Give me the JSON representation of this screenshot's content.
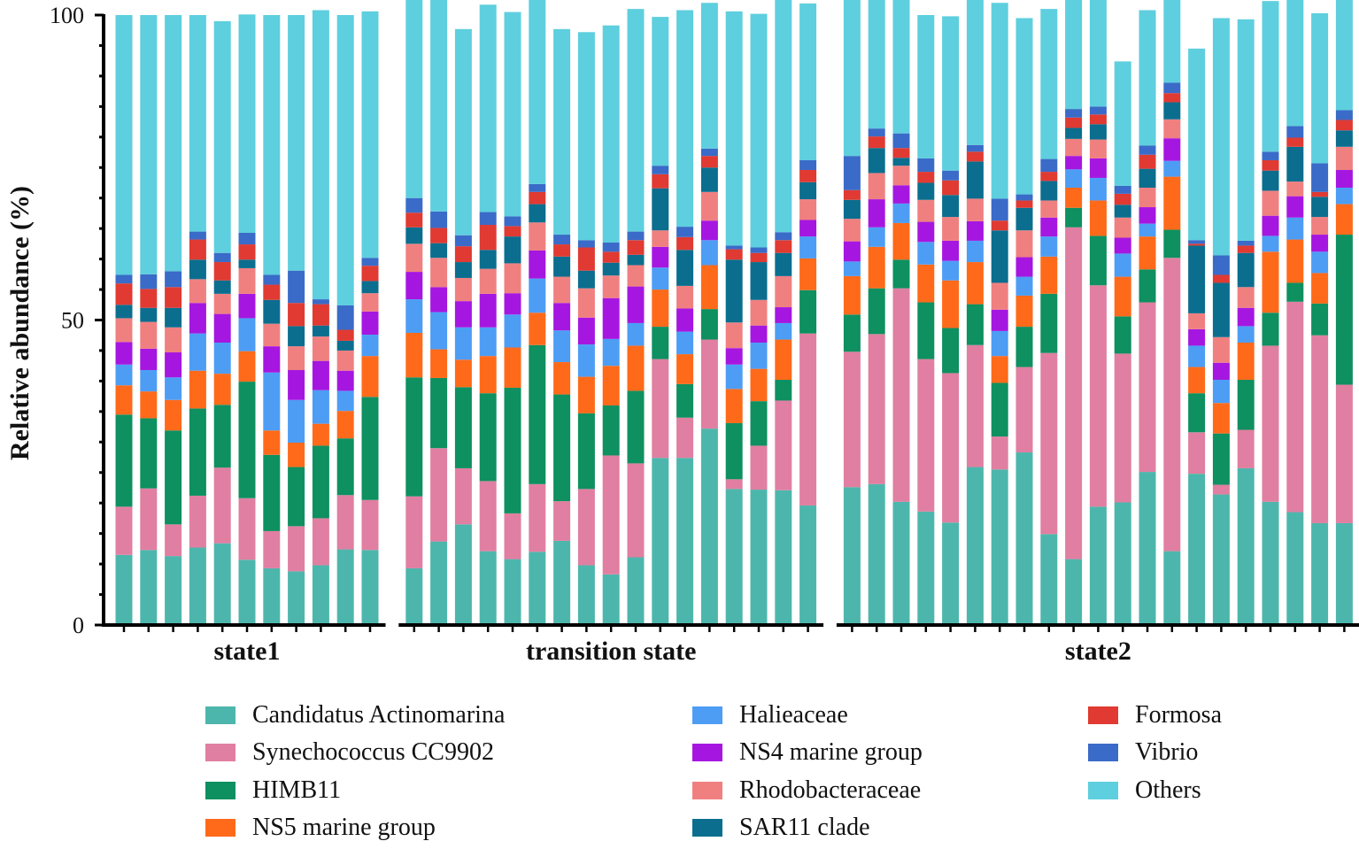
{
  "chart_data": {
    "type": "bar",
    "stacked": true,
    "ylabel": "Relative abundance (%)",
    "ylim": [
      0,
      100
    ],
    "yticks": [
      0,
      50,
      100
    ],
    "groups": [
      {
        "label": "state1",
        "count": 11
      },
      {
        "label": "transition state",
        "count": 17
      },
      {
        "label": "state2",
        "count": 21
      }
    ],
    "series": [
      {
        "name": "Candidatus Actinomarina",
        "color": "#4db6ac",
        "values": [
          11.5,
          12.3,
          11.3,
          12.7,
          13.4,
          10.7,
          9.3,
          8.8,
          9.8,
          12.4,
          12.3,
          9.3,
          13.7,
          16.5,
          12.1,
          10.8,
          12,
          13.8,
          9.8,
          8.3,
          11.1,
          27.4,
          27.4,
          32.2,
          22.3,
          22.2,
          22.1,
          19.6,
          22.6,
          23.1,
          20.2,
          18.6,
          16.8,
          25.9,
          25.5,
          28.3,
          14.9,
          10.8,
          19.4,
          20.1,
          25.1,
          12.1,
          24.8,
          21.4,
          25.7,
          20.2,
          18.5,
          16.7,
          16.7
        ]
      },
      {
        "name": "Synechococcus CC9902",
        "color": "#e07fa1",
        "values": [
          7.9,
          10.1,
          5.2,
          8.5,
          12.4,
          10.1,
          6.1,
          7.4,
          7.7,
          8.9,
          8.2,
          11.8,
          15.3,
          9.2,
          11.5,
          7.5,
          11.1,
          6.5,
          12.5,
          19.5,
          15.4,
          16.2,
          6.6,
          14.6,
          1.6,
          7.2,
          14.7,
          28.2,
          22.2,
          24.6,
          35,
          25,
          24.5,
          20,
          5.4,
          14,
          29.7,
          54.4,
          36.3,
          24.4,
          27.8,
          48.1,
          6.8,
          1.6,
          6.3,
          25.6,
          34.5,
          30.8,
          22.7
        ]
      },
      {
        "name": "HIMB11",
        "color": "#0e9060",
        "values": [
          15.1,
          11.5,
          15.4,
          14.3,
          10.3,
          19.1,
          12.5,
          9.7,
          11.9,
          9.3,
          16.9,
          19.5,
          11.5,
          13.3,
          14.4,
          20.6,
          22.8,
          17.5,
          12.4,
          8.2,
          11.9,
          5.3,
          5.5,
          5,
          9.2,
          7.3,
          3.4,
          7.1,
          6.1,
          7.5,
          4.7,
          9.3,
          7.4,
          6.7,
          8.8,
          6.6,
          9.7,
          3.2,
          8.1,
          6.1,
          5.4,
          4.6,
          6.4,
          8.4,
          8.2,
          5.4,
          3.1,
          5.2,
          24.6
        ]
      },
      {
        "name": "NS5 marine group",
        "color": "#ff6a1a",
        "values": [
          4.8,
          4.4,
          5,
          6.2,
          5.1,
          5,
          4,
          4,
          3.6,
          4.5,
          6.7,
          7.3,
          4.7,
          4.5,
          6.1,
          6.6,
          5.3,
          5.3,
          6,
          6.5,
          7.4,
          6.1,
          4.9,
          7.2,
          5.6,
          5.3,
          6.6,
          5.2,
          6.3,
          6.8,
          6,
          6.2,
          7.8,
          6.9,
          4.4,
          5.1,
          6.1,
          3.3,
          5.8,
          6.5,
          5.4,
          8.7,
          4.3,
          5,
          6.1,
          10,
          7.1,
          5,
          5
        ]
      },
      {
        "name": "Halieaceae",
        "color": "#4d9df5",
        "values": [
          3.4,
          3.5,
          3.7,
          6.1,
          5.1,
          5.4,
          9.5,
          7,
          5.5,
          3.3,
          3.5,
          5.5,
          6.1,
          5.3,
          4.7,
          5.4,
          5.6,
          5.2,
          5.3,
          4.4,
          3.7,
          3.6,
          3.7,
          4.1,
          4,
          4.3,
          2.7,
          3.6,
          2.4,
          3.2,
          3.2,
          3.7,
          3.2,
          3.5,
          4.1,
          3.1,
          3.3,
          3,
          3.7,
          3.8,
          2.1,
          2.6,
          3.5,
          3.8,
          2.7,
          2.6,
          3.6,
          3.5,
          2.7
        ]
      },
      {
        "name": "NS4 marine group",
        "color": "#a517e0",
        "values": [
          3.7,
          3.5,
          4.1,
          5,
          4.7,
          4,
          4.3,
          4.9,
          4.8,
          3.3,
          3.8,
          4.5,
          4.1,
          4.3,
          5.5,
          3.5,
          4.6,
          4.5,
          4.4,
          6.7,
          6,
          3.4,
          3.8,
          3.2,
          2.7,
          2.8,
          2.6,
          2.7,
          3.3,
          4.6,
          3,
          3.3,
          3.3,
          3.2,
          3.5,
          3.2,
          3.1,
          2.2,
          3.2,
          2.6,
          2.7,
          3.7,
          2.7,
          2.8,
          3,
          3.3,
          3.5,
          2.8,
          2.9
        ]
      },
      {
        "name": "Rhodobacteraceae",
        "color": "#f08080",
        "values": [
          3.9,
          4.4,
          4.1,
          3.9,
          3.3,
          4.2,
          3.7,
          3.9,
          4,
          3.3,
          3,
          4.6,
          4.8,
          3.8,
          4.1,
          4.9,
          4.6,
          4.3,
          4.8,
          3.7,
          3.5,
          2.7,
          3.7,
          4.7,
          4.2,
          4.2,
          5.1,
          3.4,
          3.7,
          4.3,
          3.2,
          3.6,
          3.9,
          3.7,
          4.4,
          4.4,
          2.8,
          2.8,
          3.1,
          3.3,
          3.2,
          3.1,
          2.6,
          4.2,
          3.4,
          4.1,
          2.4,
          2.9,
          3.8
        ]
      },
      {
        "name": "SAR11 clade",
        "color": "#0b6e8f",
        "values": [
          2.2,
          2.3,
          3.2,
          3.2,
          2.2,
          1.4,
          3.9,
          3.3,
          1.8,
          1.6,
          2,
          2.7,
          2.4,
          2.6,
          3.1,
          4.4,
          3,
          3.3,
          2.9,
          2.1,
          1.7,
          6.9,
          5.9,
          4,
          10.3,
          6.2,
          3.8,
          2.8,
          3.1,
          4.1,
          1.3,
          2.8,
          3.6,
          6.1,
          8.6,
          3.7,
          3.2,
          1.8,
          2.5,
          2.1,
          3.1,
          2.8,
          11.1,
          8.9,
          5.6,
          3.3,
          5.7,
          3.3,
          2.7
        ]
      },
      {
        "name": "Formosa",
        "color": "#e03a32",
        "values": [
          3.5,
          3.1,
          3.4,
          3.3,
          3,
          2.5,
          2.5,
          3.8,
          3.5,
          1.8,
          2.5,
          2.4,
          2.5,
          2.6,
          4.1,
          1.7,
          2,
          2,
          3.8,
          1.8,
          2.4,
          2.3,
          2.1,
          1.9,
          1.7,
          1.5,
          2.1,
          2,
          1.6,
          1.9,
          1.6,
          1.8,
          2.4,
          1.6,
          1.6,
          1.2,
          1.5,
          1.7,
          1.6,
          1.8,
          2.3,
          1.5,
          0.3,
          1.3,
          1.2,
          1.7,
          1.5,
          0.8,
          1.7
        ]
      },
      {
        "name": "Vibrio",
        "color": "#3a6bc8",
        "values": [
          1.4,
          2.4,
          2.6,
          1.3,
          1.5,
          1.9,
          1.6,
          5.3,
          0.8,
          4,
          1.3,
          2.4,
          2.7,
          1.8,
          2.1,
          1.6,
          1.3,
          1.6,
          1.2,
          1.5,
          1.4,
          1.4,
          1.7,
          1.2,
          0.6,
          0.9,
          1.3,
          1.6,
          5.6,
          1.3,
          2.4,
          2.2,
          1.6,
          1.1,
          3.6,
          1,
          2.1,
          1.4,
          1.3,
          1.3,
          1.5,
          1.7,
          0.6,
          3.2,
          0.8,
          1.4,
          1.9,
          4.7,
          1.6
        ]
      },
      {
        "name": "Others",
        "color": "#5ecfde",
        "values": [
          42.6,
          42.5,
          42,
          35.5,
          38,
          35.8,
          42.6,
          41.9,
          47.4,
          47.6,
          40.4,
          37.4,
          35.6,
          33.8,
          34,
          33.5,
          33.3,
          33.7,
          34.1,
          35.6,
          36.5,
          24.4,
          35.5,
          23.9,
          38.4,
          38.3,
          38.8,
          25.7,
          25.8,
          26.2,
          22.3,
          23.5,
          25.3,
          25.2,
          32.1,
          28.9,
          24.6,
          18.5,
          20.4,
          20.4,
          22.2,
          21.6,
          31.4,
          38.9,
          36.3,
          24.7,
          23.9,
          24.6,
          22.6
        ]
      }
    ]
  },
  "legend_columns": [
    [
      "Candidatus Actinomarina",
      "Synechococcus CC9902",
      "HIMB11",
      "NS5 marine group"
    ],
    [
      "Halieaceae",
      "NS4 marine group",
      "Rhodobacteraceae",
      "SAR11 clade"
    ],
    [
      "Formosa",
      "Vibrio",
      "Others"
    ]
  ]
}
